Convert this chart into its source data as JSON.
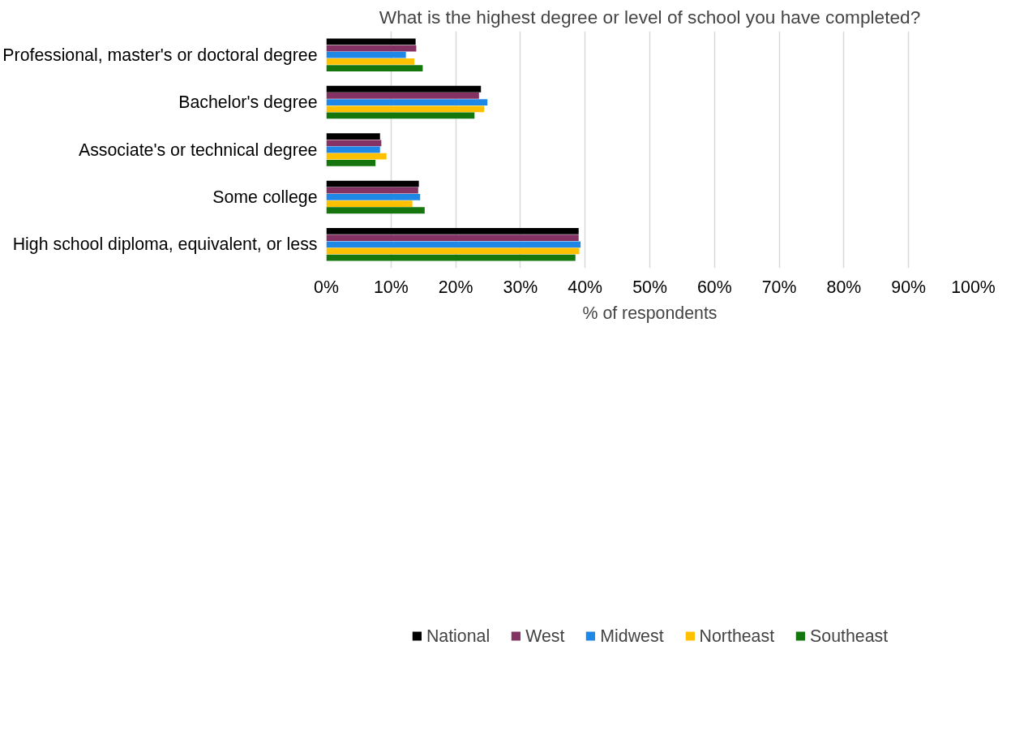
{
  "chart_data": {
    "type": "bar",
    "orientation": "horizontal",
    "title": "What is the highest degree or level of school you have completed?",
    "xlabel": "% of respondents",
    "categories": [
      "Professional, master's or doctoral degree",
      "Bachelor's degree",
      "Associate's or technical degree",
      "Some college",
      "High school diploma, equivalent, or less"
    ],
    "series": [
      {
        "name": "National",
        "color": "#000000",
        "values": [
          13.8,
          23.9,
          8.3,
          14.3,
          39.0
        ]
      },
      {
        "name": "West",
        "color": "#833263",
        "values": [
          13.9,
          23.6,
          8.5,
          14.2,
          39.0
        ]
      },
      {
        "name": "Midwest",
        "color": "#1f87e5",
        "values": [
          12.3,
          24.9,
          8.3,
          14.5,
          39.3
        ]
      },
      {
        "name": "Northeast",
        "color": "#ffc000",
        "values": [
          13.6,
          24.4,
          9.3,
          13.3,
          39.1
        ]
      },
      {
        "name": "Southeast",
        "color": "#16760e",
        "values": [
          14.9,
          22.9,
          7.6,
          15.2,
          38.5
        ]
      }
    ],
    "xlim": [
      0,
      100
    ],
    "xticks": [
      {
        "value": 0,
        "label": "0%"
      },
      {
        "value": 10,
        "label": "10%"
      },
      {
        "value": 20,
        "label": "20%"
      },
      {
        "value": 30,
        "label": "30%"
      },
      {
        "value": 40,
        "label": "40%"
      },
      {
        "value": 50,
        "label": "50%"
      },
      {
        "value": 60,
        "label": "60%"
      },
      {
        "value": 70,
        "label": "70%"
      },
      {
        "value": 80,
        "label": "80%"
      },
      {
        "value": 90,
        "label": "90%"
      },
      {
        "value": 100,
        "label": "100%"
      }
    ],
    "grid": "x",
    "legend": "bottom"
  }
}
